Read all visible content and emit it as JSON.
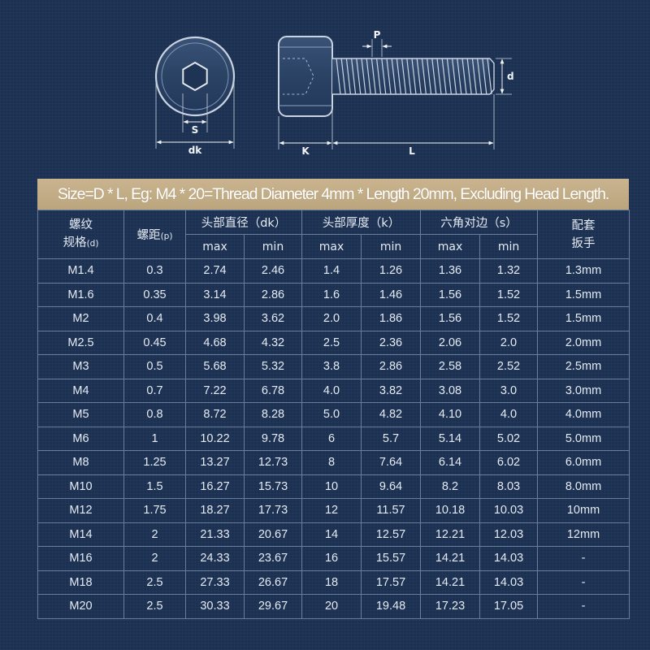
{
  "diagram": {
    "labels": {
      "s": "S",
      "dk": "dk",
      "p": "P",
      "d": "d",
      "k": "K",
      "l": "L"
    }
  },
  "banner": "Size=D * L, Eg: M4 * 20=Thread Diameter 4mm * Length 20mm, Excluding Head Length.",
  "table": {
    "headers": {
      "spec_line1": "螺纹",
      "spec_line2": "规格",
      "spec_unit": "(d)",
      "pitch": "螺距",
      "pitch_unit": "(p)",
      "head_dia": "头部直径（dk）",
      "head_thk": "头部厚度（k）",
      "hex": "六角对边（s）",
      "wrench_line1": "配套",
      "wrench_line2": "扳手",
      "max": "max",
      "min": "min"
    },
    "rows": [
      [
        "M1.4",
        "0.3",
        "2.74",
        "2.46",
        "1.4",
        "1.26",
        "1.36",
        "1.32",
        "1.3mm"
      ],
      [
        "M1.6",
        "0.35",
        "3.14",
        "2.86",
        "1.6",
        "1.46",
        "1.56",
        "1.52",
        "1.5mm"
      ],
      [
        "M2",
        "0.4",
        "3.98",
        "3.62",
        "2.0",
        "1.86",
        "1.56",
        "1.52",
        "1.5mm"
      ],
      [
        "M2.5",
        "0.45",
        "4.68",
        "4.32",
        "2.5",
        "2.36",
        "2.06",
        "2.0",
        "2.0mm"
      ],
      [
        "M3",
        "0.5",
        "5.68",
        "5.32",
        "3.8",
        "2.86",
        "2.58",
        "2.52",
        "2.5mm"
      ],
      [
        "M4",
        "0.7",
        "7.22",
        "6.78",
        "4.0",
        "3.82",
        "3.08",
        "3.0",
        "3.0mm"
      ],
      [
        "M5",
        "0.8",
        "8.72",
        "8.28",
        "5.0",
        "4.82",
        "4.10",
        "4.0",
        "4.0mm"
      ],
      [
        "M6",
        "1",
        "10.22",
        "9.78",
        "6",
        "5.7",
        "5.14",
        "5.02",
        "5.0mm"
      ],
      [
        "M8",
        "1.25",
        "13.27",
        "12.73",
        "8",
        "7.64",
        "6.14",
        "6.02",
        "6.0mm"
      ],
      [
        "M10",
        "1.5",
        "16.27",
        "15.73",
        "10",
        "9.64",
        "8.2",
        "8.03",
        "8.0mm"
      ],
      [
        "M12",
        "1.75",
        "18.27",
        "17.73",
        "12",
        "11.57",
        "10.18",
        "10.03",
        "10mm"
      ],
      [
        "M14",
        "2",
        "21.33",
        "20.67",
        "14",
        "12.57",
        "12.21",
        "12.03",
        "12mm"
      ],
      [
        "M16",
        "2",
        "24.33",
        "23.67",
        "16",
        "15.57",
        "14.21",
        "14.03",
        "-"
      ],
      [
        "M18",
        "2.5",
        "27.33",
        "26.67",
        "18",
        "17.57",
        "14.21",
        "14.03",
        "-"
      ],
      [
        "M20",
        "2.5",
        "30.33",
        "29.67",
        "20",
        "19.48",
        "17.23",
        "17.05",
        "-"
      ]
    ]
  }
}
